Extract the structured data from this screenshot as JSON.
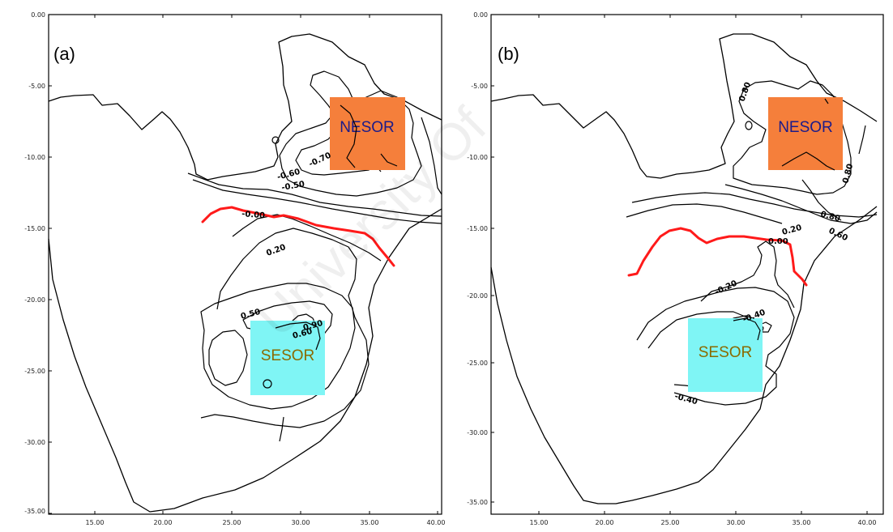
{
  "panels": [
    {
      "label": "(a)",
      "y_ticks": [
        "0.00",
        "-5.00",
        "-10.00",
        "-15.00",
        "-20.00",
        "-25.00",
        "-30.00",
        "-35.00"
      ],
      "x_ticks": [
        "15.00",
        "20.00",
        "25.00",
        "30.00",
        "35.00",
        "40.00"
      ],
      "regions": [
        {
          "name": "NESOR",
          "color": "#f57f3b",
          "text_color": "#1b1b8a"
        },
        {
          "name": "SESOR",
          "color": "#7ff5f5",
          "text_color": "#8a6a00"
        }
      ],
      "contour_labels": [
        "-0.70",
        "-0.60",
        "-0.50",
        "-0.00",
        "0.20",
        "0.50",
        "0.90",
        "0.60"
      ]
    },
    {
      "label": "(b)",
      "y_ticks": [
        "0.00",
        "-5.00",
        "-10.00",
        "-15.00",
        "-20.00",
        "-25.00",
        "-30.00",
        "-35.00"
      ],
      "x_ticks": [
        "15.00",
        "20.00",
        "25.00",
        "30.00",
        "35.00",
        "40.00"
      ],
      "regions": [
        {
          "name": "NESOR",
          "color": "#f57f3b",
          "text_color": "#1b1b8a"
        },
        {
          "name": "SESOR",
          "color": "#7ff5f5",
          "text_color": "#8a6a00"
        }
      ],
      "contour_labels": [
        "0.80",
        "0.80",
        "0.80",
        "0.60",
        "0.20",
        "0.00",
        "-0.20",
        "-0.40",
        "-0.40"
      ]
    }
  ],
  "watermark": "University Of"
}
